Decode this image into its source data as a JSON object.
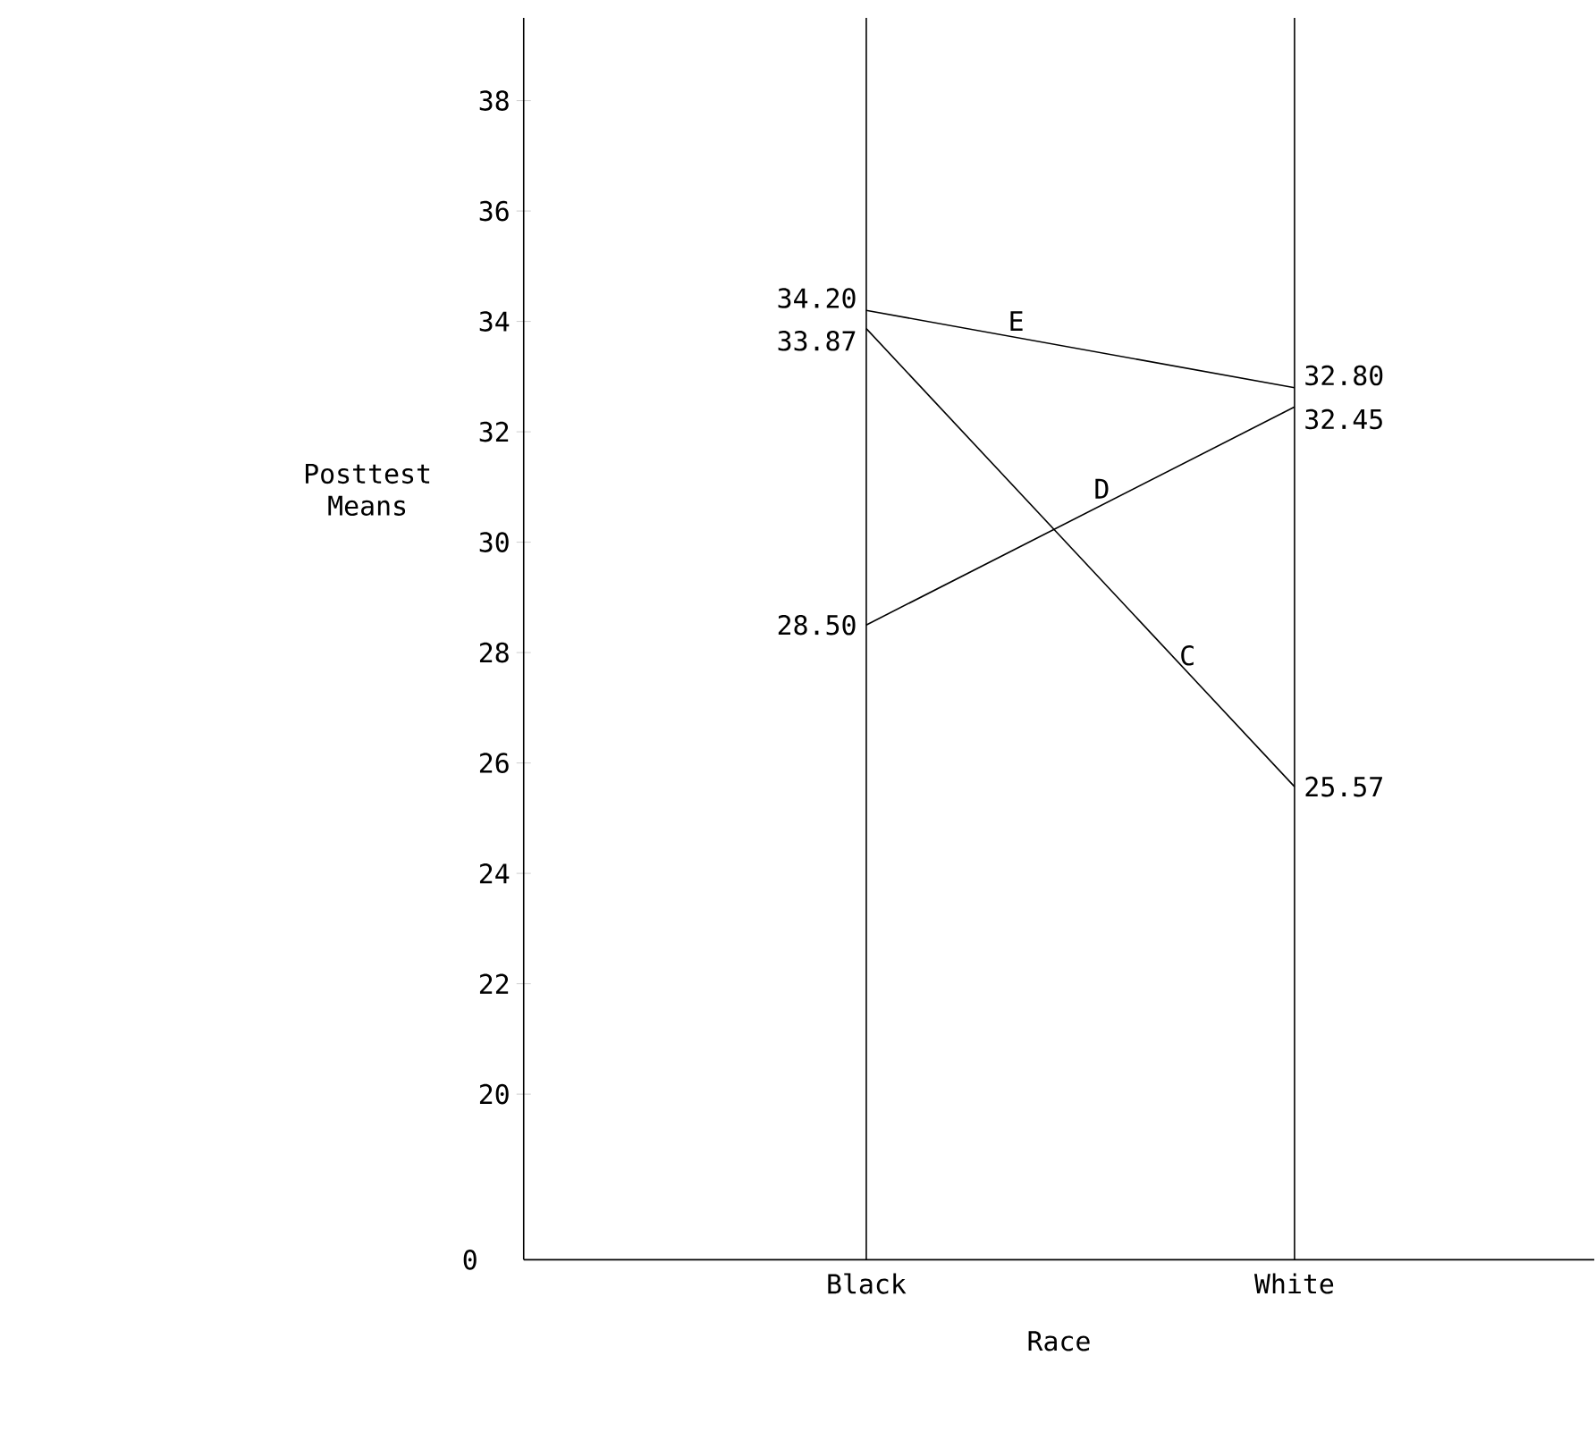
{
  "chart_data": {
    "type": "line",
    "xlabel": "Race",
    "ylabel": "Posttest Means",
    "categories": [
      "Black",
      "White"
    ],
    "series": [
      {
        "name": "E",
        "color": "#000000",
        "values": [
          34.2,
          32.8
        ],
        "value_labels": [
          "34.20",
          "32.80"
        ]
      },
      {
        "name": "D",
        "color": "#000000",
        "values": [
          28.5,
          32.45
        ],
        "value_labels": [
          "28.50",
          "32.45"
        ]
      },
      {
        "name": "C",
        "color": "#000000",
        "values": [
          33.87,
          25.57
        ],
        "value_labels": [
          "33.87",
          "25.57"
        ]
      }
    ],
    "ylim": [
      17,
      39.5
    ],
    "yticks": [
      20,
      22,
      24,
      26,
      28,
      30,
      32,
      34,
      36,
      38
    ],
    "grid": "x",
    "marker": "none",
    "line_style": "solid",
    "annotations": [
      "0"
    ]
  }
}
